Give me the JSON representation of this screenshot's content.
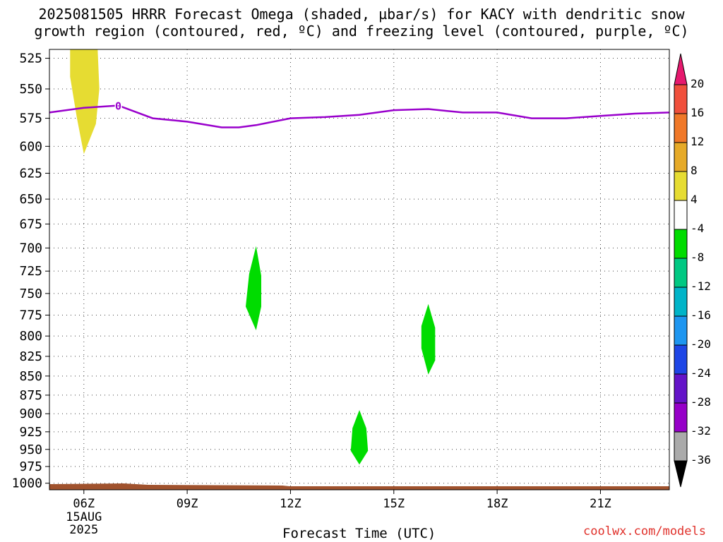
{
  "title_line1": "2025081505 HRRR Forecast Omega (shaded, µbar/s) for KACY with dendritic snow",
  "title_line2": "growth region (contoured, red, ºC) and freezing level (contoured, purple, ºC)",
  "watermark": "coolwx.com/models",
  "chart_data": {
    "type": "area",
    "title": "2025081505 HRRR Forecast Omega (shaded, µbar/s) for KACY with dendritic snow growth region (contoured, red, ºC) and freezing level (contoured, purple, ºC)",
    "xlabel": "Forecast Time (UTC)",
    "ylabel": "",
    "x_ticks": [
      "06Z",
      "09Z",
      "12Z",
      "15Z",
      "18Z",
      "21Z"
    ],
    "x_tick_hours": [
      6,
      9,
      12,
      15,
      18,
      21
    ],
    "x_first_tick_sublabels": [
      "15AUG",
      "2025"
    ],
    "xlim": [
      5.0,
      23.0
    ],
    "y_ticks": [
      525,
      550,
      575,
      600,
      625,
      650,
      675,
      700,
      725,
      750,
      775,
      800,
      825,
      850,
      875,
      900,
      925,
      950,
      975,
      1000
    ],
    "ylim": [
      1010,
      518
    ],
    "y_scale": "log-pressure",
    "grid": true,
    "freezing_level": {
      "label": "0",
      "color": "#9900cc",
      "hours": [
        5.0,
        6.0,
        7.0,
        8.0,
        9.0,
        10.0,
        10.5,
        11.0,
        12.0,
        13.0,
        14.0,
        15.0,
        16.0,
        17.0,
        18.0,
        19.0,
        20.0,
        21.0,
        22.0,
        23.0
      ],
      "pressure": [
        570,
        566,
        564,
        575,
        578,
        583,
        583,
        581,
        575,
        574,
        572,
        568,
        567,
        570,
        570,
        575,
        575,
        573,
        571,
        570
      ]
    },
    "omega_regions": [
      {
        "value_range": [
          4,
          8
        ],
        "color": "#e6dc32",
        "points": [
          [
            5.6,
            518
          ],
          [
            6.4,
            518
          ],
          [
            6.45,
            550
          ],
          [
            6.35,
            580
          ],
          [
            6.0,
            607
          ],
          [
            5.8,
            575
          ],
          [
            5.6,
            540
          ]
        ]
      },
      {
        "value_range": [
          -8,
          -4
        ],
        "color": "#00dc00",
        "points": [
          [
            11.0,
            698
          ],
          [
            11.15,
            730
          ],
          [
            11.15,
            765
          ],
          [
            11.0,
            793
          ],
          [
            10.7,
            765
          ],
          [
            10.8,
            728
          ]
        ]
      },
      {
        "value_range": [
          -8,
          -4
        ],
        "color": "#00dc00",
        "points": [
          [
            16.0,
            762
          ],
          [
            16.2,
            790
          ],
          [
            16.2,
            830
          ],
          [
            16.0,
            848
          ],
          [
            15.8,
            815
          ],
          [
            15.8,
            788
          ]
        ]
      },
      {
        "value_range": [
          -8,
          -4
        ],
        "color": "#00dc00",
        "points": [
          [
            14.0,
            895
          ],
          [
            14.2,
            920
          ],
          [
            14.25,
            952
          ],
          [
            14.0,
            972
          ],
          [
            13.75,
            952
          ],
          [
            13.8,
            920
          ]
        ]
      }
    ],
    "colorbar": {
      "labels": [
        "20",
        "16",
        "12",
        "8",
        "4",
        "-4",
        "-8",
        "-12",
        "-16",
        "-20",
        "-24",
        "-28",
        "-32",
        "-36"
      ],
      "colors": [
        "#e6196e",
        "#f0503c",
        "#f07828",
        "#e6aa28",
        "#e6dc32",
        "#ffffff",
        "#00dc00",
        "#00c882",
        "#00b4c8",
        "#1e96f0",
        "#1e46e6",
        "#6414c8",
        "#9600c8",
        "#aaaaaa",
        "#000000"
      ]
    },
    "ground": {
      "color": "#a0522d"
    }
  }
}
